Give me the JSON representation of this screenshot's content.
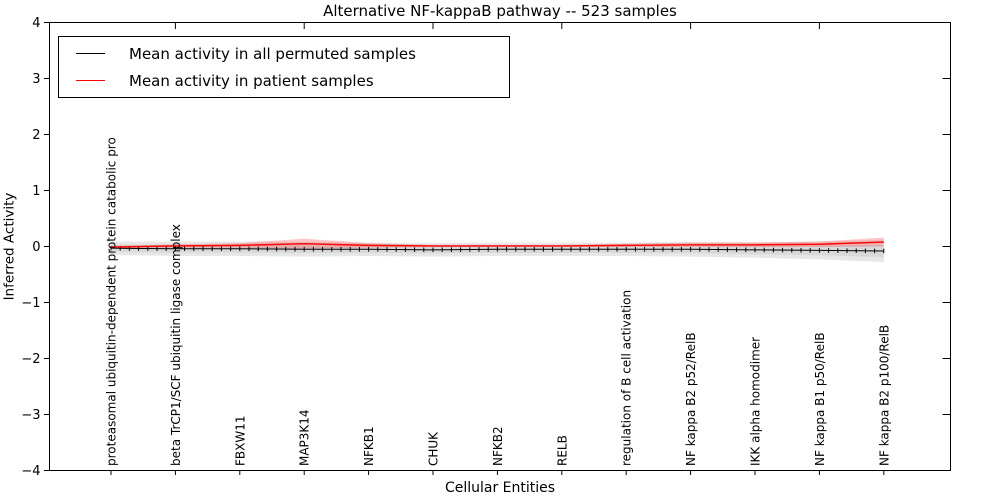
{
  "figure": {
    "title": "Alternative NF-kappaB pathway -- 523 samples",
    "xlabel": "Cellular Entities",
    "ylabel": "Inferred Activity"
  },
  "legend": {
    "position": "upper left",
    "items": [
      {
        "label": "Mean activity in all permuted samples",
        "color": "#000000"
      },
      {
        "label": "Mean activity in patient samples",
        "color": "#ff0000"
      }
    ]
  },
  "chart_data": {
    "type": "line",
    "title": "Alternative NF-kappaB pathway -- 523 samples",
    "n_samples": 523,
    "xlabel": "Cellular Entities",
    "ylabel": "Inferred Activity",
    "ylim": [
      -4,
      4
    ],
    "yticks": [
      -4,
      -3,
      -2,
      -1,
      0,
      1,
      2,
      3,
      4
    ],
    "grid": false,
    "legend_position": "upper left",
    "categories": [
      "proteasomal ubiquitin-dependent protein catabolic pro",
      "beta TrCP1/SCF ubiquitin ligase complex",
      "FBXW11",
      "MAP3K14",
      "NFKB1",
      "CHUK",
      "NFKB2",
      "RELB",
      "regulation of B cell activation",
      "NF kappa B2 p52/RelB",
      "IKK alpha homodimer",
      "NF kappa B1 p50/RelB",
      "NF kappa B2 p100/RelB"
    ],
    "n_points": 85,
    "marker": "vertical-dash",
    "series": [
      {
        "name": "Mean activity in all permuted samples",
        "color": "#000000",
        "band_color": "#d9d9d9",
        "values": [
          -0.03,
          -0.04,
          -0.04,
          -0.05,
          -0.05,
          -0.06,
          -0.05,
          -0.05,
          -0.05,
          -0.05,
          -0.06,
          -0.07,
          -0.08
        ],
        "band_halfwidth": [
          0.12,
          0.13,
          0.13,
          0.13,
          0.12,
          0.12,
          0.12,
          0.12,
          0.12,
          0.13,
          0.14,
          0.16,
          0.2
        ]
      },
      {
        "name": "Mean activity in patient samples",
        "color": "#ff0000",
        "band_color": "#f5b8b8",
        "values": [
          -0.01,
          0.01,
          0.02,
          0.05,
          0.02,
          0.01,
          0.01,
          0.01,
          0.02,
          0.03,
          0.03,
          0.04,
          0.08
        ],
        "band_halfwidth": [
          0.02,
          0.03,
          0.04,
          0.09,
          0.04,
          0.02,
          0.02,
          0.02,
          0.03,
          0.04,
          0.04,
          0.05,
          0.08
        ]
      }
    ]
  }
}
